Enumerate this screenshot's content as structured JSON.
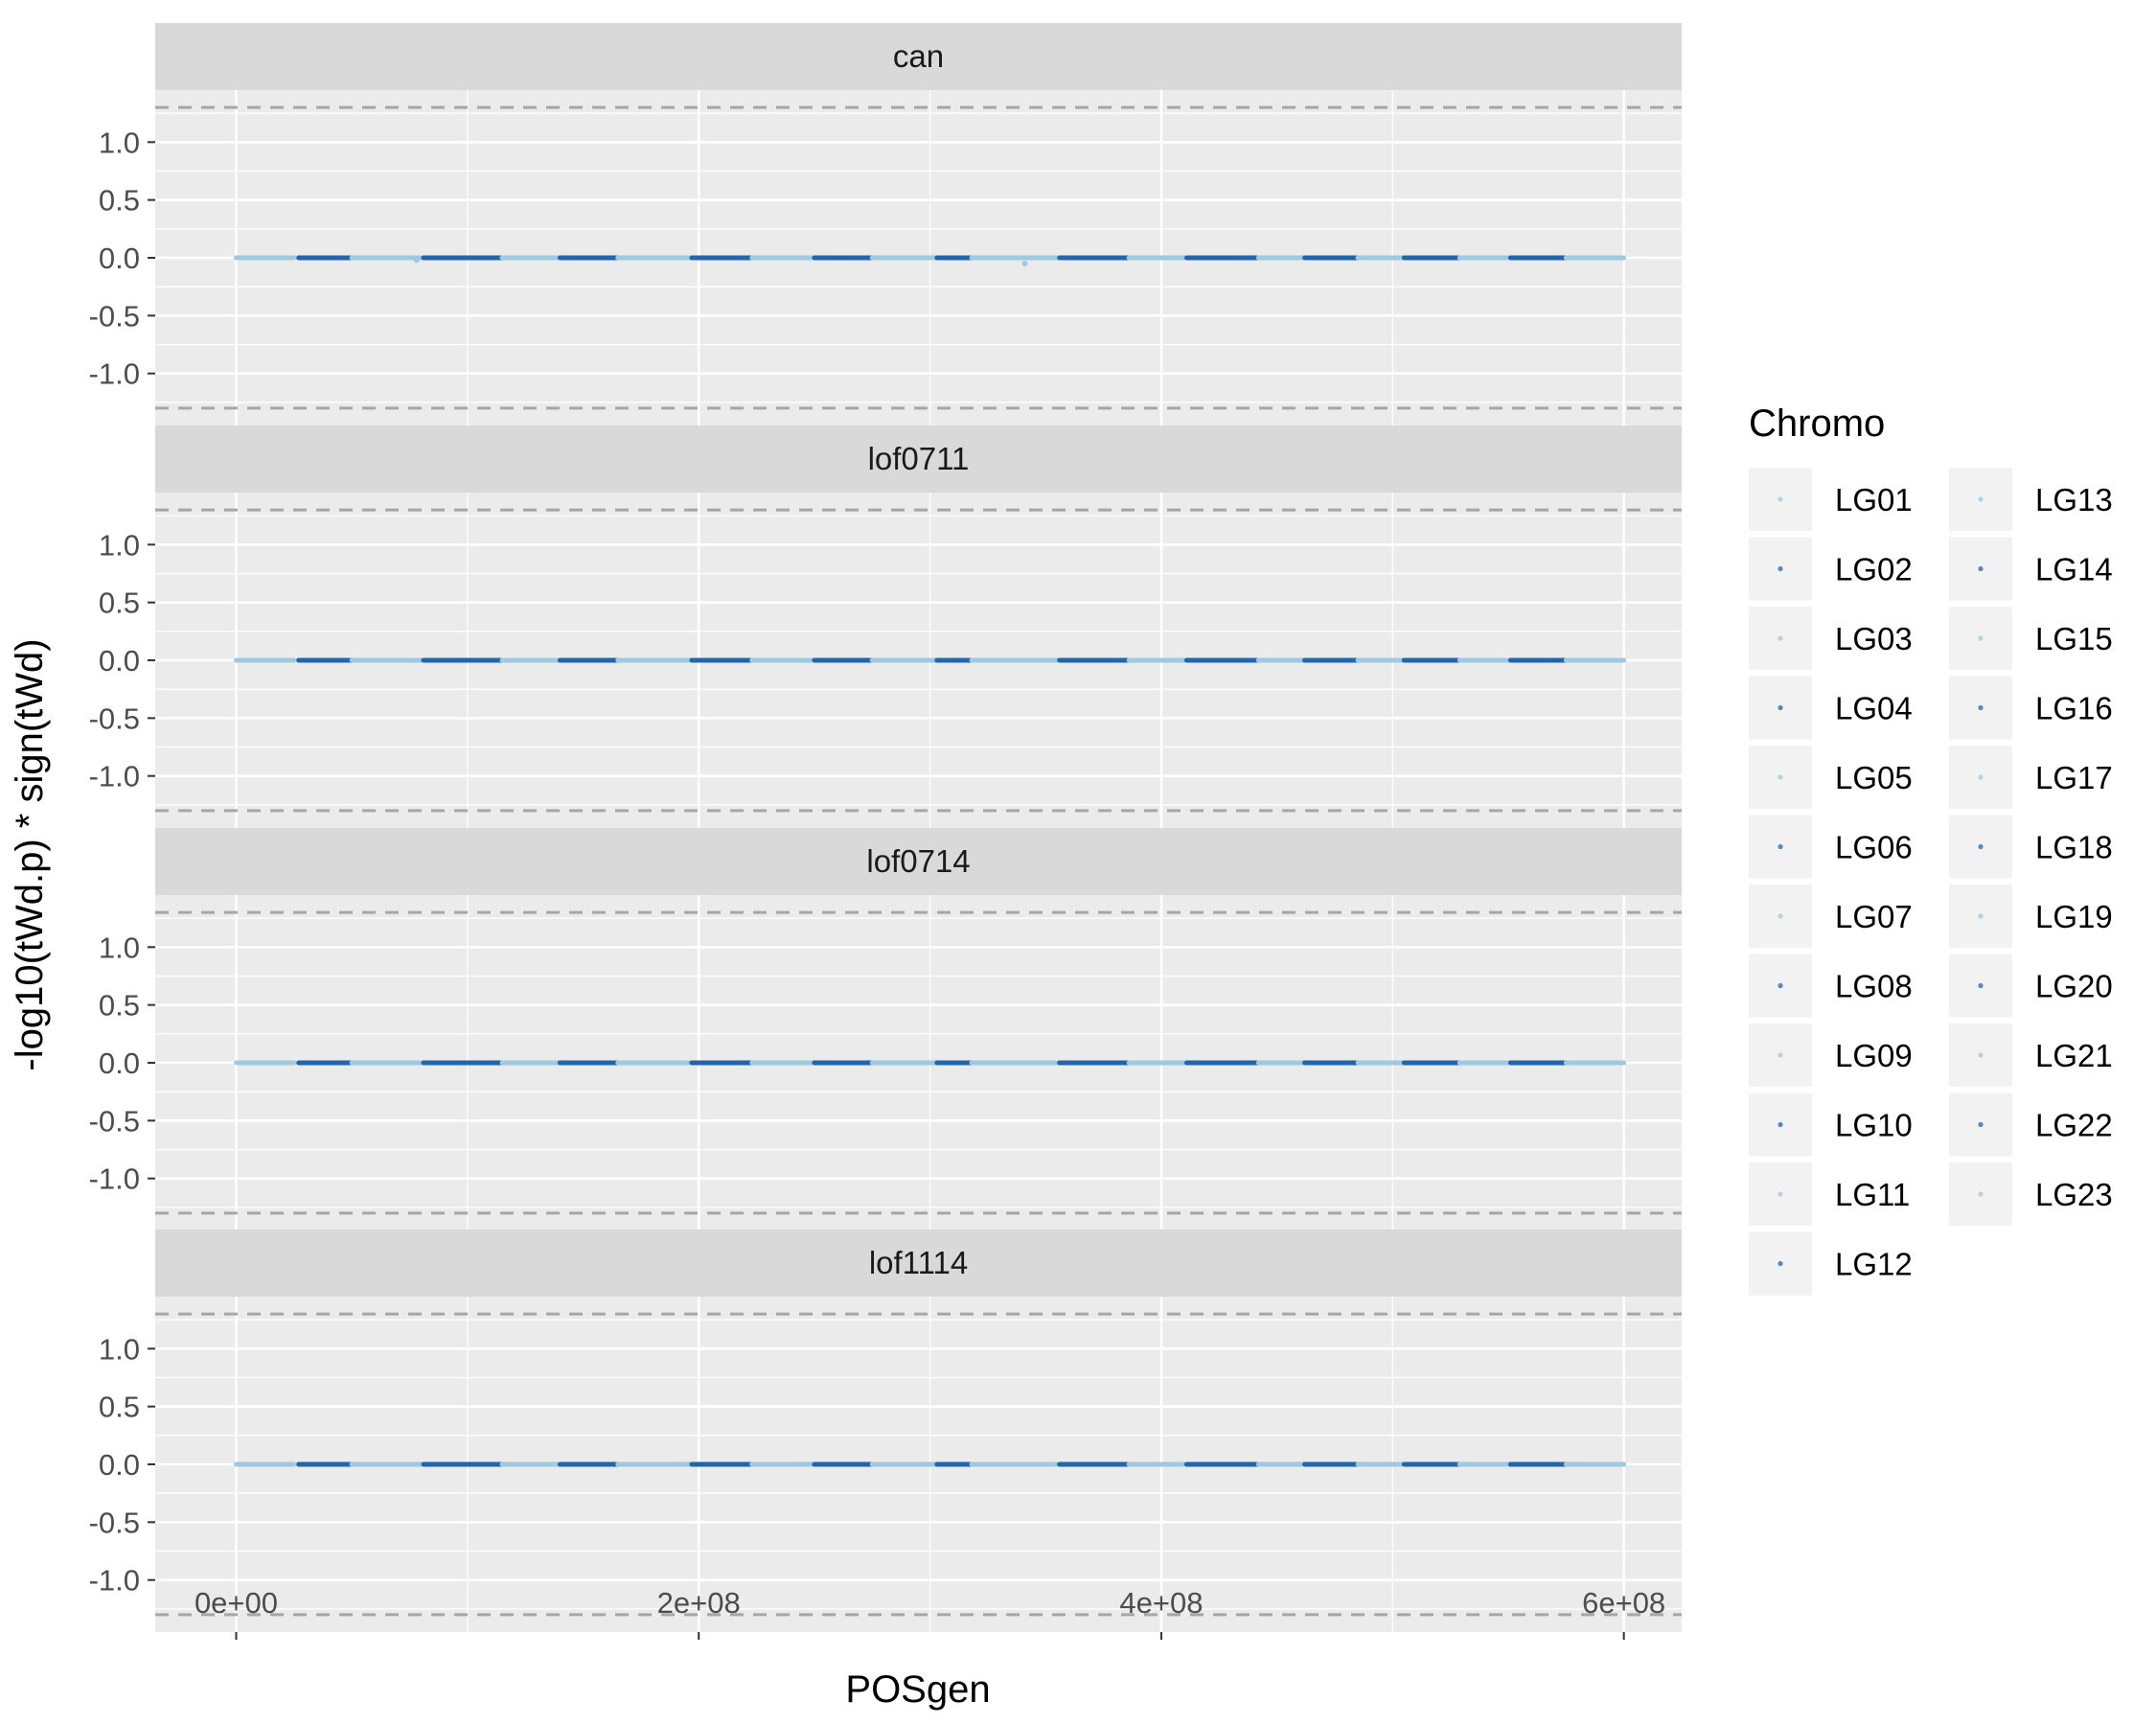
{
  "chart_data": {
    "type": "scatter",
    "title": "",
    "xlabel": "POSgen",
    "ylabel": "-log10(tWd.p) * sign(tWd)",
    "xlim": [
      -35000000,
      625000000
    ],
    "ylim": [
      -1.45,
      1.45
    ],
    "x_ticks": [
      0,
      200000000,
      400000000,
      600000000
    ],
    "x_tick_labels": [
      "0e+00",
      "2e+08",
      "4e+08",
      "6e+08"
    ],
    "y_ticks": [
      1.0,
      0.5,
      0.0,
      -0.5,
      -1.0
    ],
    "y_tick_labels": [
      "1.0",
      "0.5",
      "0.0",
      "-0.5",
      "-1.0"
    ],
    "threshold_lines": [
      1.3,
      -1.3
    ],
    "grid": true,
    "facets": [
      {
        "label": "can",
        "outliers": [
          {
            "chromo": "LG13",
            "x": 341000000,
            "y": -0.05
          },
          {
            "chromo": "LG03",
            "x": 78000000,
            "y": -0.02
          }
        ]
      },
      {
        "label": "lof0711",
        "outliers": []
      },
      {
        "label": "lof0714",
        "outliers": []
      },
      {
        "label": "lof1114",
        "outliers": []
      }
    ],
    "chromosomes": [
      {
        "name": "LG01",
        "start": 0,
        "end": 25000000,
        "color": "#9ecae1"
      },
      {
        "name": "LG02",
        "start": 27000000,
        "end": 50000000,
        "color": "#2166ac"
      },
      {
        "name": "LG03",
        "start": 50000000,
        "end": 81000000,
        "color": "#9ecae1"
      },
      {
        "name": "LG04",
        "start": 81000000,
        "end": 115000000,
        "color": "#2166ac"
      },
      {
        "name": "LG05",
        "start": 115000000,
        "end": 140000000,
        "color": "#9ecae1"
      },
      {
        "name": "LG06",
        "start": 140000000,
        "end": 165000000,
        "color": "#2166ac"
      },
      {
        "name": "LG07",
        "start": 165000000,
        "end": 197000000,
        "color": "#9ecae1"
      },
      {
        "name": "LG08",
        "start": 197000000,
        "end": 223000000,
        "color": "#2166ac"
      },
      {
        "name": "LG09",
        "start": 223000000,
        "end": 250000000,
        "color": "#9ecae1"
      },
      {
        "name": "LG10",
        "start": 250000000,
        "end": 275000000,
        "color": "#2166ac"
      },
      {
        "name": "LG11",
        "start": 275000000,
        "end": 303000000,
        "color": "#9ecae1"
      },
      {
        "name": "LG12",
        "start": 303000000,
        "end": 318000000,
        "color": "#2166ac"
      },
      {
        "name": "LG13",
        "start": 318000000,
        "end": 356000000,
        "color": "#9ecae1"
      },
      {
        "name": "LG14",
        "start": 356000000,
        "end": 386000000,
        "color": "#2166ac"
      },
      {
        "name": "LG15",
        "start": 386000000,
        "end": 411000000,
        "color": "#9ecae1"
      },
      {
        "name": "LG16",
        "start": 411000000,
        "end": 442000000,
        "color": "#2166ac"
      },
      {
        "name": "LG17",
        "start": 442000000,
        "end": 462000000,
        "color": "#9ecae1"
      },
      {
        "name": "LG18",
        "start": 462000000,
        "end": 485000000,
        "color": "#2166ac"
      },
      {
        "name": "LG19",
        "start": 485000000,
        "end": 505000000,
        "color": "#9ecae1"
      },
      {
        "name": "LG20",
        "start": 505000000,
        "end": 529000000,
        "color": "#2166ac"
      },
      {
        "name": "LG21",
        "start": 529000000,
        "end": 551000000,
        "color": "#9ecae1"
      },
      {
        "name": "LG22",
        "start": 551000000,
        "end": 575000000,
        "color": "#2166ac"
      },
      {
        "name": "LG23",
        "start": 575000000,
        "end": 600000000,
        "color": "#9ecae1"
      }
    ],
    "legend": {
      "title": "Chromo",
      "position": "right",
      "entries": [
        "LG01",
        "LG02",
        "LG03",
        "LG04",
        "LG05",
        "LG06",
        "LG07",
        "LG08",
        "LG09",
        "LG10",
        "LG11",
        "LG12",
        "LG13",
        "LG14",
        "LG15",
        "LG16",
        "LG17",
        "LG18",
        "LG19",
        "LG20",
        "LG21",
        "LG22",
        "LG23"
      ]
    },
    "colors": {
      "panel_background": "#ebebeb",
      "strip_background": "#d9d9d9",
      "grid_major": "#ffffff",
      "threshold_line": "#a6a6a6",
      "light_series": "#9ecae1",
      "dark_series": "#2166ac"
    }
  }
}
